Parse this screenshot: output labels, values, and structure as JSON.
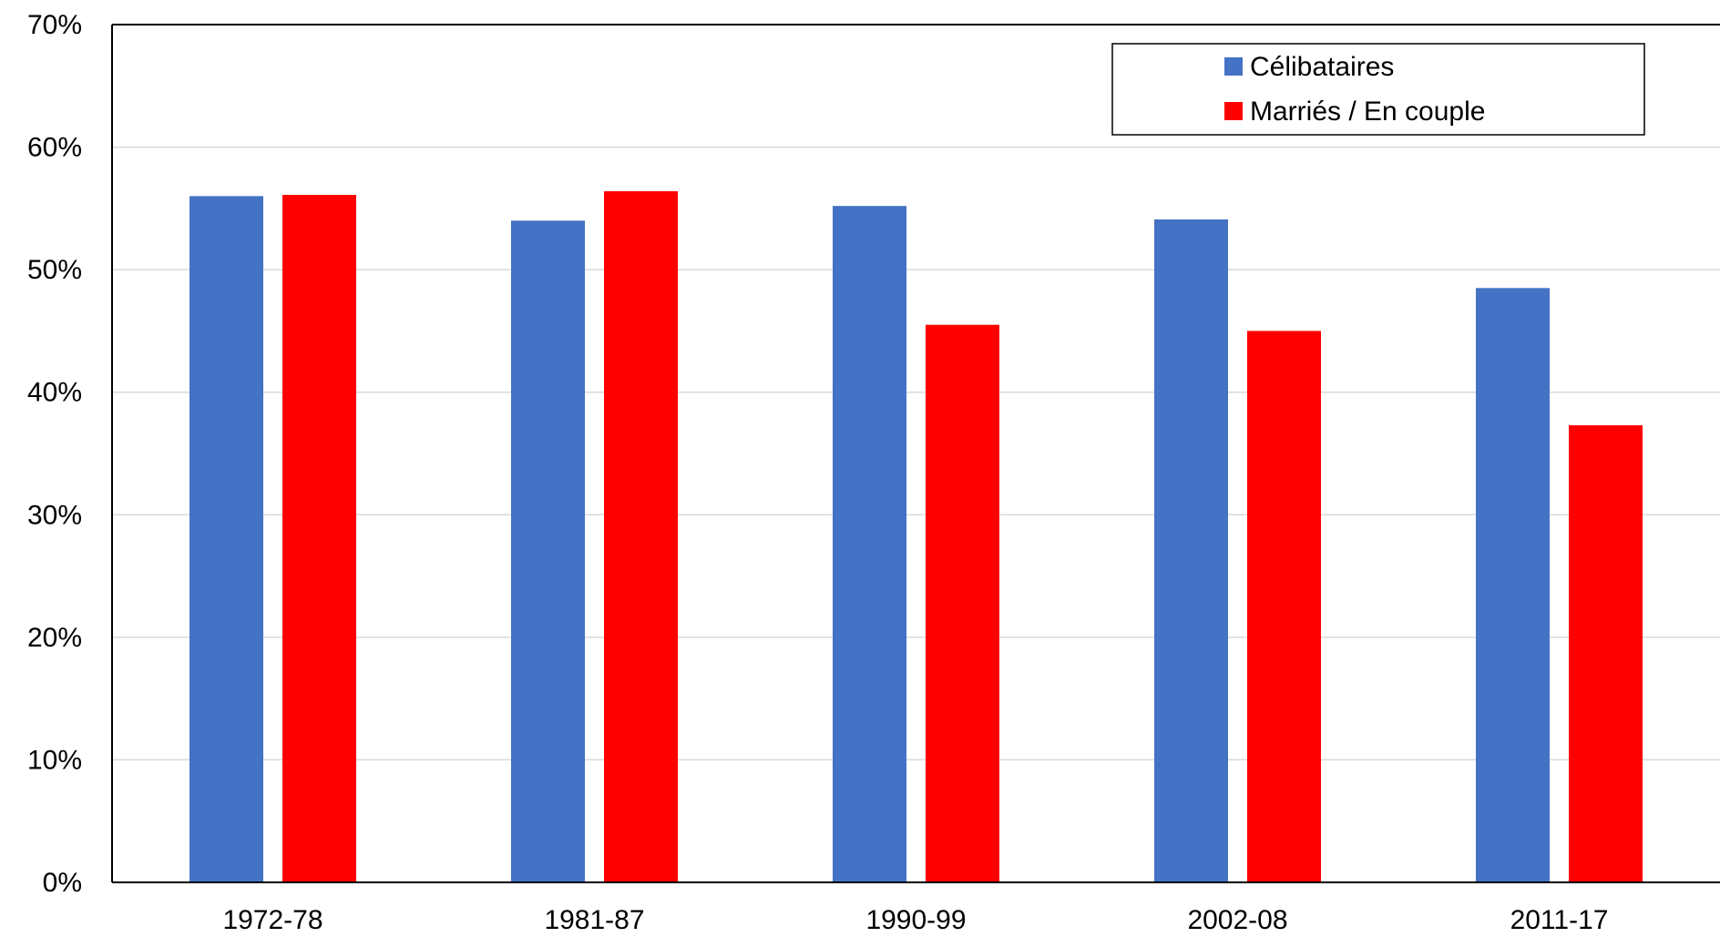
{
  "chart_data": {
    "type": "bar",
    "categories": [
      "1972-78",
      "1981-87",
      "1990-99",
      "2002-08",
      "2011-17"
    ],
    "series": [
      {
        "name": "Célibataires",
        "color": "#4472c4",
        "values": [
          56.0,
          54.0,
          55.2,
          54.1,
          48.5
        ]
      },
      {
        "name": "Marriés / En couple",
        "color": "#ff0000",
        "values": [
          56.1,
          56.4,
          45.5,
          45.0,
          37.3
        ]
      }
    ],
    "ylim": [
      0,
      70
    ],
    "yticks": [
      0,
      10,
      20,
      30,
      40,
      50,
      60,
      70
    ],
    "ytick_labels": [
      "0%",
      "10%",
      "20%",
      "30%",
      "40%",
      "50%",
      "60%",
      "70%"
    ],
    "title": "",
    "xlabel": "",
    "ylabel": "",
    "grid": true,
    "legend_position": "top-right"
  }
}
